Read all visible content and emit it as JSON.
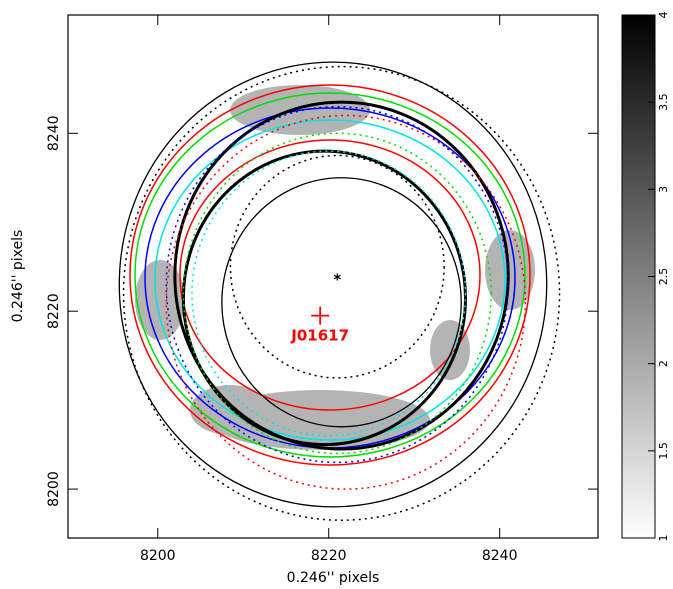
{
  "chart_data": {
    "type": "image",
    "xlabel": "0.246'' pixels",
    "ylabel": "0.246'' pixels",
    "xlim": [
      8189.5,
      8251.5
    ],
    "ylim": [
      8194.5,
      8253.3
    ],
    "xticks": [
      8200,
      8220,
      8240
    ],
    "yticks": [
      8200,
      8220,
      8240
    ],
    "colorbar": {
      "lim": [
        1,
        4
      ],
      "ticks": [
        1,
        1.5,
        2,
        2.5,
        3,
        3.5,
        4
      ]
    },
    "circles": [
      {
        "cx": 8220.5,
        "cy": 8223,
        "r": 25,
        "color": "#000000",
        "width": 1.3,
        "dotted": false
      },
      {
        "cx": 8221.5,
        "cy": 8222,
        "r": 25.5,
        "color": "#000000",
        "width": 1.5,
        "dotted": true
      },
      {
        "cx": 8221.5,
        "cy": 8224,
        "r": 19.5,
        "color": "#000000",
        "width": 3,
        "dotted": false
      },
      {
        "cx": 8219.5,
        "cy": 8221.5,
        "r": 16.5,
        "color": "#000000",
        "width": 3,
        "dotted": false
      },
      {
        "cx": 8221.5,
        "cy": 8221,
        "r": 14,
        "color": "#000000",
        "width": 1.3,
        "dotted": false
      },
      {
        "cx": 8221,
        "cy": 8225,
        "r": 12.5,
        "color": "#000000",
        "width": 1.5,
        "dotted": true
      },
      {
        "cx": 8222,
        "cy": 8221,
        "r": 21,
        "color": "#ff0000",
        "width": 1.5,
        "dotted": true
      },
      {
        "cx": 8221,
        "cy": 8222,
        "r": 18,
        "color": "#00dd00",
        "width": 1.5,
        "dotted": true
      },
      {
        "cx": 8221,
        "cy": 8223,
        "r": 20,
        "color": "#0000ff",
        "width": 1.5,
        "dotted": true
      },
      {
        "cx": 8220,
        "cy": 8222,
        "r": 16,
        "color": "#00e5e5",
        "width": 1.5,
        "dotted": true
      }
    ],
    "markers": [
      {
        "x": 8219,
        "y": 8219.5,
        "color": "#ff0000"
      }
    ],
    "annotations": [
      {
        "text": "*",
        "x": 8221,
        "y": 8223.5,
        "color": "#000000"
      },
      {
        "text": "J01617",
        "x": 8219,
        "y": 8217.2,
        "color": "#ff0000"
      }
    ]
  }
}
